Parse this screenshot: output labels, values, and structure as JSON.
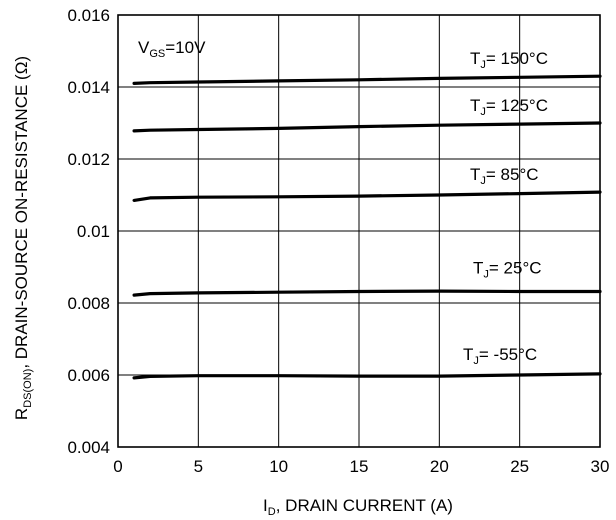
{
  "chart_data": {
    "type": "line",
    "title": "",
    "xlabel": {
      "main": "I",
      "sub": "D",
      "rest": ", DRAIN CURRENT (A)"
    },
    "ylabel": {
      "main": "R",
      "sub": "DS(ON)",
      "rest": ", DRAIN-SOURCE ON-RESISTANCE (Ω)"
    },
    "xlim": [
      0,
      30
    ],
    "ylim": [
      0.004,
      0.016
    ],
    "xticks": [
      "0",
      "5",
      "10",
      "15",
      "20",
      "25",
      "30"
    ],
    "yticks": [
      "0.004",
      "0.006",
      "0.008",
      "0.01",
      "0.012",
      "0.014",
      "0.016"
    ],
    "grid": true,
    "condition": {
      "main": "V",
      "sub": "GS",
      "rest": "=10V"
    },
    "series": [
      {
        "name": "TJ= 150°C",
        "label": {
          "main": "T",
          "sub": "J",
          "rest": "= 150°C"
        },
        "x": [
          1,
          2,
          5,
          10,
          15,
          20,
          25,
          30
        ],
        "y": [
          0.0141,
          0.01412,
          0.01414,
          0.01417,
          0.0142,
          0.01424,
          0.01427,
          0.0143
        ]
      },
      {
        "name": "TJ= 125°C",
        "label": {
          "main": "T",
          "sub": "J",
          "rest": "= 125°C"
        },
        "x": [
          1,
          2,
          5,
          10,
          15,
          20,
          25,
          30
        ],
        "y": [
          0.01278,
          0.0128,
          0.01282,
          0.01285,
          0.0129,
          0.01294,
          0.01297,
          0.013
        ]
      },
      {
        "name": "TJ= 85°C",
        "label": {
          "main": "T",
          "sub": "J",
          "rest": "= 85°C"
        },
        "x": [
          1,
          2,
          5,
          10,
          15,
          20,
          25,
          30
        ],
        "y": [
          0.01085,
          0.01092,
          0.01094,
          0.01095,
          0.01097,
          0.011,
          0.01104,
          0.01108
        ]
      },
      {
        "name": "TJ= 25°C",
        "label": {
          "main": "T",
          "sub": "J",
          "rest": "= 25°C"
        },
        "x": [
          1,
          2,
          5,
          10,
          15,
          20,
          25,
          30
        ],
        "y": [
          0.00822,
          0.00826,
          0.00828,
          0.0083,
          0.00832,
          0.00833,
          0.00832,
          0.00832
        ]
      },
      {
        "name": "TJ= -55°C",
        "label": {
          "main": "T",
          "sub": "J",
          "rest": "= -55°C"
        },
        "x": [
          1,
          2,
          5,
          10,
          15,
          20,
          25,
          30
        ],
        "y": [
          0.00592,
          0.00596,
          0.00598,
          0.00598,
          0.00597,
          0.00597,
          0.006,
          0.00603
        ]
      }
    ]
  }
}
